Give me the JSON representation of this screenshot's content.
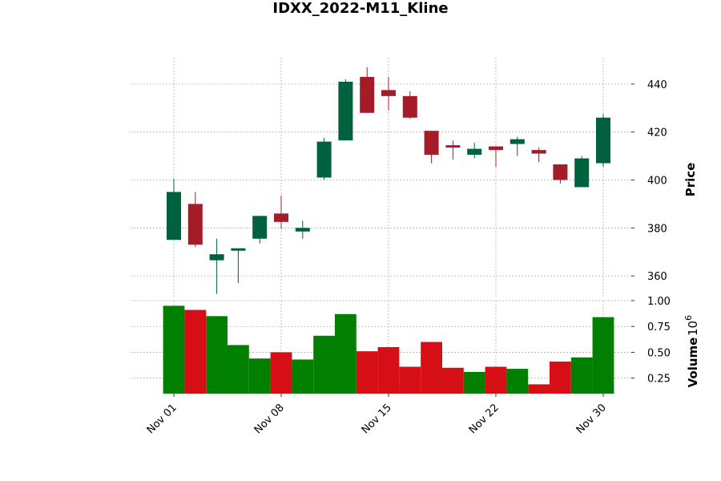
{
  "chart_data": {
    "type": "candlestick",
    "title": "IDXX_2022-M11_Kline",
    "price_label": "Price",
    "volume_label": "Volume",
    "volume_multiplier": "10",
    "volume_multiplier_exp": "6",
    "price_ylim": [
      351,
      451
    ],
    "volume_ylim": [
      0.1,
      1.0
    ],
    "price_ticks": [
      360,
      380,
      400,
      420,
      440
    ],
    "volume_ticks": [
      0.25,
      0.5,
      0.75,
      1.0
    ],
    "volume_tick_labels": [
      "0.25",
      "0.50",
      "0.75",
      "1.00"
    ],
    "x_ticks": [
      {
        "index": 0,
        "label": "Nov 01"
      },
      {
        "index": 5,
        "label": "Nov 08"
      },
      {
        "index": 10,
        "label": "Nov 15"
      },
      {
        "index": 15,
        "label": "Nov 22"
      },
      {
        "index": 20,
        "label": "Nov 30"
      }
    ],
    "grid": true,
    "colors": {
      "up": "#00613e",
      "down": "#a31c27",
      "volume_up": "#007f00",
      "volume_down": "#d60f16"
    },
    "candles": [
      {
        "date": "2022-11-01",
        "open": 375.0,
        "high": 400.5,
        "low": 375.0,
        "close": 395.0,
        "volume": 0.95
      },
      {
        "date": "2022-11-02",
        "open": 390.0,
        "high": 395.0,
        "low": 372.0,
        "close": 373.0,
        "volume": 0.91
      },
      {
        "date": "2022-11-03",
        "open": 366.5,
        "high": 375.5,
        "low": 352.5,
        "close": 369.0,
        "volume": 0.85
      },
      {
        "date": "2022-11-04",
        "open": 370.5,
        "high": 371.5,
        "low": 357.0,
        "close": 371.5,
        "volume": 0.57
      },
      {
        "date": "2022-11-07",
        "open": 375.5,
        "high": 385.0,
        "low": 373.5,
        "close": 385.0,
        "volume": 0.44
      },
      {
        "date": "2022-11-08",
        "open": 386.0,
        "high": 393.5,
        "low": 379.5,
        "close": 382.5,
        "volume": 0.5
      },
      {
        "date": "2022-11-09",
        "open": 378.5,
        "high": 383.0,
        "low": 375.5,
        "close": 380.0,
        "volume": 0.43
      },
      {
        "date": "2022-11-10",
        "open": 401.0,
        "high": 417.5,
        "low": 400.0,
        "close": 416.0,
        "volume": 0.66
      },
      {
        "date": "2022-11-11",
        "open": 416.5,
        "high": 442.0,
        "low": 416.5,
        "close": 441.0,
        "volume": 0.87
      },
      {
        "date": "2022-11-14",
        "open": 443.0,
        "high": 447.0,
        "low": 428.0,
        "close": 428.0,
        "volume": 0.51
      },
      {
        "date": "2022-11-15",
        "open": 437.5,
        "high": 443.0,
        "low": 429.0,
        "close": 435.0,
        "volume": 0.55
      },
      {
        "date": "2022-11-16",
        "open": 435.0,
        "high": 437.0,
        "low": 425.5,
        "close": 426.0,
        "volume": 0.36
      },
      {
        "date": "2022-11-17",
        "open": 420.5,
        "high": 420.5,
        "low": 407.0,
        "close": 410.5,
        "volume": 0.6
      },
      {
        "date": "2022-11-18",
        "open": 414.5,
        "high": 416.5,
        "low": 408.5,
        "close": 413.5,
        "volume": 0.35
      },
      {
        "date": "2022-11-21",
        "open": 410.5,
        "high": 415.5,
        "low": 409.0,
        "close": 413.0,
        "volume": 0.31
      },
      {
        "date": "2022-11-22",
        "open": 414.0,
        "high": 414.0,
        "low": 405.5,
        "close": 412.5,
        "volume": 0.36
      },
      {
        "date": "2022-11-23",
        "open": 415.0,
        "high": 418.0,
        "low": 410.0,
        "close": 417.0,
        "volume": 0.34
      },
      {
        "date": "2022-11-25",
        "open": 412.5,
        "high": 413.5,
        "low": 407.5,
        "close": 411.0,
        "volume": 0.19
      },
      {
        "date": "2022-11-28",
        "open": 406.5,
        "high": 406.5,
        "low": 398.5,
        "close": 400.0,
        "volume": 0.41
      },
      {
        "date": "2022-11-29",
        "open": 397.0,
        "high": 410.0,
        "low": 397.0,
        "close": 409.0,
        "volume": 0.45
      },
      {
        "date": "2022-11-30",
        "open": 407.0,
        "high": 427.5,
        "low": 405.5,
        "close": 426.0,
        "volume": 0.84
      }
    ]
  }
}
